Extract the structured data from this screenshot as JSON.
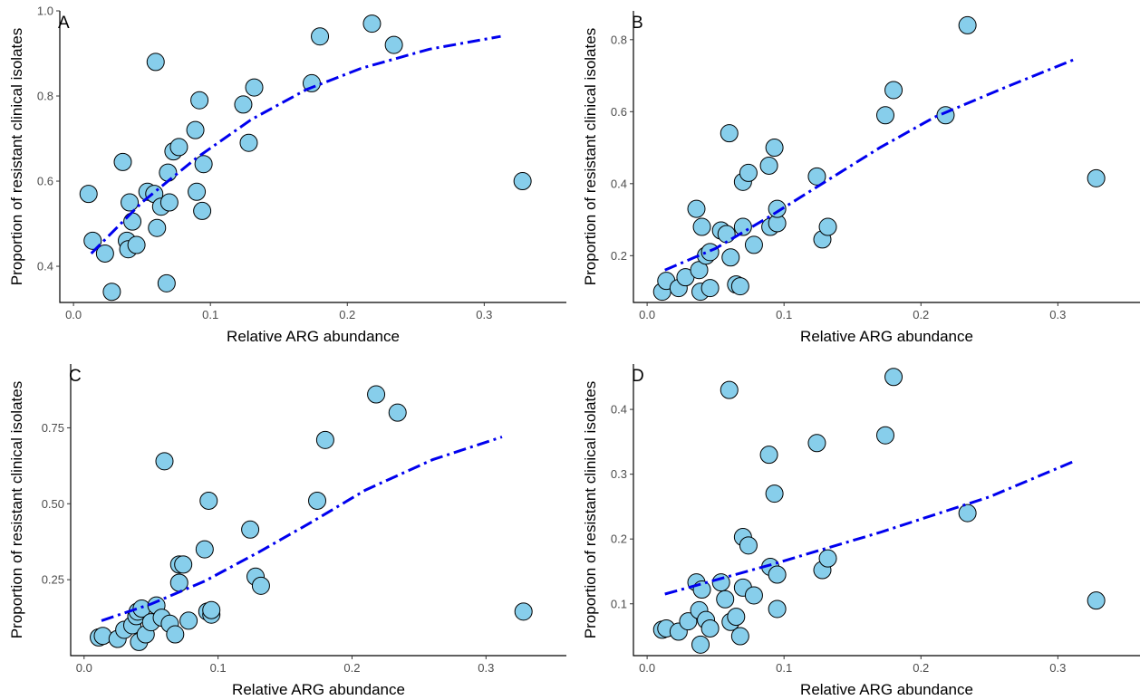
{
  "chart_data": [
    {
      "type": "scatter",
      "panel_label": "A",
      "xlabel": "Relative ARG abundance",
      "ylabel": "Proportion of resistant clinical isolates",
      "xlim": [
        -0.01,
        0.36
      ],
      "ylim": [
        0.315,
        1.0
      ],
      "xticks": [
        0.0,
        0.1,
        0.2,
        0.3
      ],
      "xtick_labels": [
        "0.0",
        "0.1",
        "0.2",
        "0.3"
      ],
      "yticks": [
        0.4,
        0.6,
        0.8,
        1.0
      ],
      "ytick_labels": [
        "0.4",
        "0.6",
        "0.8",
        "1.0"
      ],
      "grid": false,
      "points": [
        {
          "x": 0.011,
          "y": 0.57
        },
        {
          "x": 0.014,
          "y": 0.46
        },
        {
          "x": 0.023,
          "y": 0.43
        },
        {
          "x": 0.028,
          "y": 0.34
        },
        {
          "x": 0.036,
          "y": 0.645
        },
        {
          "x": 0.039,
          "y": 0.46
        },
        {
          "x": 0.04,
          "y": 0.44
        },
        {
          "x": 0.041,
          "y": 0.55
        },
        {
          "x": 0.043,
          "y": 0.505
        },
        {
          "x": 0.046,
          "y": 0.45
        },
        {
          "x": 0.054,
          "y": 0.575
        },
        {
          "x": 0.059,
          "y": 0.57
        },
        {
          "x": 0.06,
          "y": 0.88
        },
        {
          "x": 0.061,
          "y": 0.49
        },
        {
          "x": 0.064,
          "y": 0.54
        },
        {
          "x": 0.068,
          "y": 0.36
        },
        {
          "x": 0.069,
          "y": 0.62
        },
        {
          "x": 0.07,
          "y": 0.55
        },
        {
          "x": 0.073,
          "y": 0.67
        },
        {
          "x": 0.077,
          "y": 0.68
        },
        {
          "x": 0.089,
          "y": 0.72
        },
        {
          "x": 0.09,
          "y": 0.575
        },
        {
          "x": 0.092,
          "y": 0.79
        },
        {
          "x": 0.094,
          "y": 0.53
        },
        {
          "x": 0.095,
          "y": 0.64
        },
        {
          "x": 0.124,
          "y": 0.78
        },
        {
          "x": 0.128,
          "y": 0.69
        },
        {
          "x": 0.132,
          "y": 0.82
        },
        {
          "x": 0.174,
          "y": 0.83
        },
        {
          "x": 0.18,
          "y": 0.94
        },
        {
          "x": 0.218,
          "y": 0.97
        },
        {
          "x": 0.234,
          "y": 0.92
        },
        {
          "x": 0.328,
          "y": 0.6
        }
      ],
      "fit_line": [
        {
          "x": 0.013,
          "y": 0.43
        },
        {
          "x": 0.05,
          "y": 0.55
        },
        {
          "x": 0.09,
          "y": 0.655
        },
        {
          "x": 0.13,
          "y": 0.745
        },
        {
          "x": 0.17,
          "y": 0.815
        },
        {
          "x": 0.21,
          "y": 0.865
        },
        {
          "x": 0.26,
          "y": 0.91
        },
        {
          "x": 0.312,
          "y": 0.94
        }
      ]
    },
    {
      "type": "scatter",
      "panel_label": "B",
      "xlabel": "Relative ARG abundance",
      "ylabel": "Proportion of resistant clinical isolates",
      "xlim": [
        -0.01,
        0.36
      ],
      "ylim": [
        0.07,
        0.88
      ],
      "xticks": [
        0.0,
        0.1,
        0.2,
        0.3
      ],
      "xtick_labels": [
        "0.0",
        "0.1",
        "0.2",
        "0.3"
      ],
      "yticks": [
        0.2,
        0.4,
        0.6,
        0.8
      ],
      "ytick_labels": [
        "0.2",
        "0.4",
        "0.6",
        "0.8"
      ],
      "grid": false,
      "points": [
        {
          "x": 0.011,
          "y": 0.1
        },
        {
          "x": 0.014,
          "y": 0.13
        },
        {
          "x": 0.023,
          "y": 0.11
        },
        {
          "x": 0.028,
          "y": 0.14
        },
        {
          "x": 0.036,
          "y": 0.33
        },
        {
          "x": 0.038,
          "y": 0.16
        },
        {
          "x": 0.039,
          "y": 0.1
        },
        {
          "x": 0.04,
          "y": 0.28
        },
        {
          "x": 0.043,
          "y": 0.2
        },
        {
          "x": 0.046,
          "y": 0.11
        },
        {
          "x": 0.046,
          "y": 0.21
        },
        {
          "x": 0.054,
          "y": 0.27
        },
        {
          "x": 0.058,
          "y": 0.26
        },
        {
          "x": 0.06,
          "y": 0.54
        },
        {
          "x": 0.061,
          "y": 0.195
        },
        {
          "x": 0.065,
          "y": 0.12
        },
        {
          "x": 0.068,
          "y": 0.115
        },
        {
          "x": 0.07,
          "y": 0.405
        },
        {
          "x": 0.07,
          "y": 0.28
        },
        {
          "x": 0.074,
          "y": 0.43
        },
        {
          "x": 0.078,
          "y": 0.23
        },
        {
          "x": 0.089,
          "y": 0.45
        },
        {
          "x": 0.09,
          "y": 0.28
        },
        {
          "x": 0.093,
          "y": 0.5
        },
        {
          "x": 0.095,
          "y": 0.29
        },
        {
          "x": 0.095,
          "y": 0.33
        },
        {
          "x": 0.124,
          "y": 0.42
        },
        {
          "x": 0.128,
          "y": 0.245
        },
        {
          "x": 0.132,
          "y": 0.28
        },
        {
          "x": 0.174,
          "y": 0.59
        },
        {
          "x": 0.18,
          "y": 0.66
        },
        {
          "x": 0.218,
          "y": 0.59
        },
        {
          "x": 0.234,
          "y": 0.84
        },
        {
          "x": 0.328,
          "y": 0.415
        }
      ],
      "fit_line": [
        {
          "x": 0.013,
          "y": 0.16
        },
        {
          "x": 0.05,
          "y": 0.22
        },
        {
          "x": 0.09,
          "y": 0.31
        },
        {
          "x": 0.13,
          "y": 0.405
        },
        {
          "x": 0.17,
          "y": 0.5
        },
        {
          "x": 0.21,
          "y": 0.585
        },
        {
          "x": 0.26,
          "y": 0.665
        },
        {
          "x": 0.312,
          "y": 0.745
        }
      ]
    },
    {
      "type": "scatter",
      "panel_label": "C",
      "xlabel": "Relative ARG abundance",
      "ylabel": "Proportion of resistant clinical isolates",
      "xlim": [
        -0.01,
        0.36
      ],
      "ylim": [
        0.0,
        0.96
      ],
      "xticks": [
        0.0,
        0.1,
        0.2,
        0.3
      ],
      "xtick_labels": [
        "0.0",
        "0.1",
        "0.2",
        "0.3"
      ],
      "yticks": [
        0.25,
        0.5,
        0.75
      ],
      "ytick_labels": [
        "0.25",
        "0.50",
        "0.75"
      ],
      "grid": false,
      "points": [
        {
          "x": 0.011,
          "y": 0.06
        },
        {
          "x": 0.014,
          "y": 0.065
        },
        {
          "x": 0.025,
          "y": 0.055
        },
        {
          "x": 0.03,
          "y": 0.085
        },
        {
          "x": 0.036,
          "y": 0.1
        },
        {
          "x": 0.039,
          "y": 0.13
        },
        {
          "x": 0.04,
          "y": 0.145
        },
        {
          "x": 0.041,
          "y": 0.045
        },
        {
          "x": 0.043,
          "y": 0.155
        },
        {
          "x": 0.046,
          "y": 0.07
        },
        {
          "x": 0.05,
          "y": 0.11
        },
        {
          "x": 0.054,
          "y": 0.165
        },
        {
          "x": 0.058,
          "y": 0.125
        },
        {
          "x": 0.06,
          "y": 0.64
        },
        {
          "x": 0.064,
          "y": 0.105
        },
        {
          "x": 0.068,
          "y": 0.07
        },
        {
          "x": 0.071,
          "y": 0.24
        },
        {
          "x": 0.071,
          "y": 0.3
        },
        {
          "x": 0.074,
          "y": 0.3
        },
        {
          "x": 0.078,
          "y": 0.115
        },
        {
          "x": 0.09,
          "y": 0.35
        },
        {
          "x": 0.092,
          "y": 0.145
        },
        {
          "x": 0.093,
          "y": 0.51
        },
        {
          "x": 0.095,
          "y": 0.135
        },
        {
          "x": 0.095,
          "y": 0.15
        },
        {
          "x": 0.124,
          "y": 0.415
        },
        {
          "x": 0.128,
          "y": 0.26
        },
        {
          "x": 0.132,
          "y": 0.23
        },
        {
          "x": 0.174,
          "y": 0.51
        },
        {
          "x": 0.18,
          "y": 0.71
        },
        {
          "x": 0.218,
          "y": 0.86
        },
        {
          "x": 0.234,
          "y": 0.8
        },
        {
          "x": 0.328,
          "y": 0.145
        }
      ],
      "fit_line": [
        {
          "x": 0.013,
          "y": 0.115
        },
        {
          "x": 0.05,
          "y": 0.17
        },
        {
          "x": 0.09,
          "y": 0.245
        },
        {
          "x": 0.13,
          "y": 0.34
        },
        {
          "x": 0.17,
          "y": 0.44
        },
        {
          "x": 0.21,
          "y": 0.545
        },
        {
          "x": 0.26,
          "y": 0.645
        },
        {
          "x": 0.312,
          "y": 0.72
        }
      ]
    },
    {
      "type": "scatter",
      "panel_label": "D",
      "xlabel": "Relative ARG abundance",
      "ylabel": "Proportion of resistant clinical isolates",
      "xlim": [
        -0.01,
        0.36
      ],
      "ylim": [
        0.02,
        0.47
      ],
      "xticks": [
        0.0,
        0.1,
        0.2,
        0.3
      ],
      "xtick_labels": [
        "0.0",
        "0.1",
        "0.2",
        "0.3"
      ],
      "yticks": [
        0.1,
        0.2,
        0.3,
        0.4
      ],
      "ytick_labels": [
        "0.1",
        "0.2",
        "0.3",
        "0.4"
      ],
      "grid": false,
      "points": [
        {
          "x": 0.011,
          "y": 0.06
        },
        {
          "x": 0.014,
          "y": 0.062
        },
        {
          "x": 0.023,
          "y": 0.057
        },
        {
          "x": 0.03,
          "y": 0.073
        },
        {
          "x": 0.036,
          "y": 0.133
        },
        {
          "x": 0.038,
          "y": 0.09
        },
        {
          "x": 0.039,
          "y": 0.037
        },
        {
          "x": 0.04,
          "y": 0.122
        },
        {
          "x": 0.043,
          "y": 0.075
        },
        {
          "x": 0.046,
          "y": 0.062
        },
        {
          "x": 0.054,
          "y": 0.133
        },
        {
          "x": 0.057,
          "y": 0.107
        },
        {
          "x": 0.06,
          "y": 0.43
        },
        {
          "x": 0.061,
          "y": 0.072
        },
        {
          "x": 0.065,
          "y": 0.08
        },
        {
          "x": 0.068,
          "y": 0.05
        },
        {
          "x": 0.07,
          "y": 0.203
        },
        {
          "x": 0.07,
          "y": 0.125
        },
        {
          "x": 0.074,
          "y": 0.19
        },
        {
          "x": 0.078,
          "y": 0.113
        },
        {
          "x": 0.089,
          "y": 0.33
        },
        {
          "x": 0.09,
          "y": 0.157
        },
        {
          "x": 0.093,
          "y": 0.27
        },
        {
          "x": 0.095,
          "y": 0.145
        },
        {
          "x": 0.095,
          "y": 0.092
        },
        {
          "x": 0.124,
          "y": 0.348
        },
        {
          "x": 0.128,
          "y": 0.152
        },
        {
          "x": 0.132,
          "y": 0.17
        },
        {
          "x": 0.174,
          "y": 0.36
        },
        {
          "x": 0.18,
          "y": 0.45
        },
        {
          "x": 0.234,
          "y": 0.24
        },
        {
          "x": 0.328,
          "y": 0.105
        }
      ],
      "fit_line": [
        {
          "x": 0.013,
          "y": 0.115
        },
        {
          "x": 0.09,
          "y": 0.16
        },
        {
          "x": 0.17,
          "y": 0.21
        },
        {
          "x": 0.25,
          "y": 0.265
        },
        {
          "x": 0.312,
          "y": 0.32
        }
      ]
    }
  ],
  "colors": {
    "point_fill": "#87ceeb",
    "point_stroke": "#000000",
    "fit_line": "#0000ee",
    "axis": "#000000",
    "tick_label": "#4d4d4d"
  }
}
